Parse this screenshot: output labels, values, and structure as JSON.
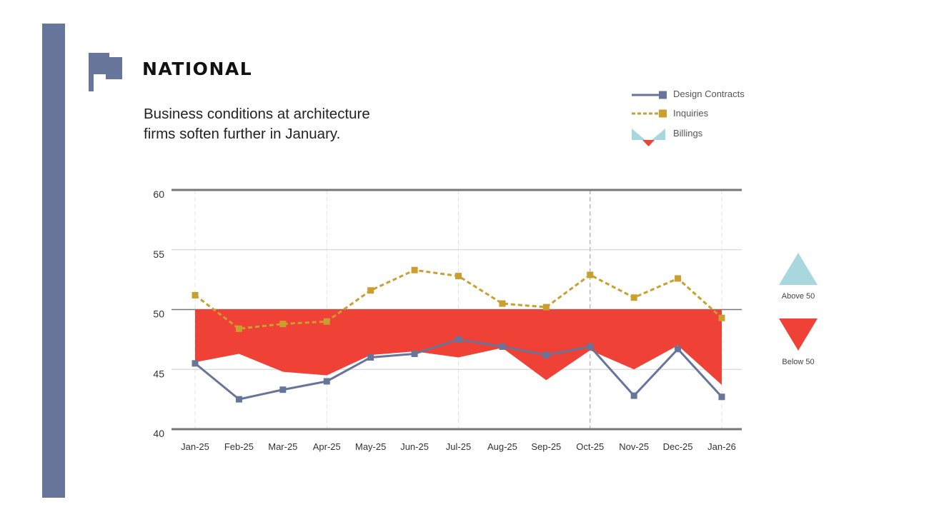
{
  "header": {
    "title": "NATIONAL",
    "subtitle_line1": "Business conditions at architecture",
    "subtitle_line2": "firms soften further in January.",
    "icon": "flag-icon"
  },
  "colors": {
    "sidebar": "#67759A",
    "design_contracts": "#67759A",
    "inquiries": "#C9A02E",
    "billings_above": "#A8D8DD",
    "billings_below": "#EF4136",
    "grid_major": "#777777",
    "grid_minor": "#CFCFCF"
  },
  "legend": {
    "items": [
      {
        "label": "Design Contracts",
        "icon": "solid-line-square-marker"
      },
      {
        "label": "Inquiries",
        "icon": "dashed-line-square-marker"
      },
      {
        "label": "Billings",
        "icon": "above-below-triangles"
      }
    ]
  },
  "side_key": {
    "above_label": "Above 50",
    "below_label": "Below 50"
  },
  "chart_data": {
    "type": "line",
    "title": "NATIONAL",
    "subtitle": "Business conditions at architecture firms soften further in January.",
    "xlabel": "",
    "ylabel": "",
    "categories": [
      "Jan-25",
      "Feb-25",
      "Mar-25",
      "Apr-25",
      "May-25",
      "Jun-25",
      "Jul-25",
      "Aug-25",
      "Sep-25",
      "Oct-25",
      "Nov-25",
      "Dec-25",
      "Jan-26"
    ],
    "ylim": [
      40,
      60
    ],
    "yticks": [
      40,
      45,
      50,
      55,
      60
    ],
    "baseline": 50,
    "grid": true,
    "legend_position": "top-right",
    "series": [
      {
        "name": "Billings",
        "style": "area-vs-50",
        "values": [
          45.6,
          46.3,
          44.8,
          44.5,
          46.2,
          46.5,
          46.0,
          46.8,
          44.1,
          46.6,
          45.0,
          47.0,
          43.7
        ]
      },
      {
        "name": "Inquiries",
        "style": "dashed-line",
        "values": [
          51.2,
          48.4,
          48.8,
          49.0,
          51.6,
          53.3,
          52.8,
          50.5,
          50.2,
          52.9,
          51.0,
          52.6,
          49.3
        ]
      },
      {
        "name": "Design Contracts",
        "style": "solid-line",
        "values": [
          45.5,
          42.5,
          43.3,
          44.0,
          46.0,
          46.3,
          47.5,
          46.9,
          46.2,
          46.9,
          42.8,
          46.7,
          42.7
        ]
      }
    ]
  }
}
